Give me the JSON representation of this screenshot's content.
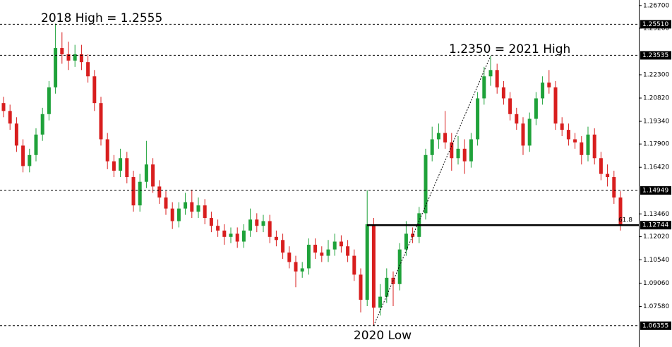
{
  "chart_data": {
    "type": "candlestick",
    "up_color": "#1fa23a",
    "down_color": "#d81e1e",
    "ylim": [
      1.0545,
      1.2705
    ],
    "yticks": [
      {
        "value": 1.267,
        "label": "1.26700"
      },
      {
        "value": 1.2526,
        "label": "1.25260"
      },
      {
        "value": 1.223,
        "label": "1.22300"
      },
      {
        "value": 1.2082,
        "label": "1.20820"
      },
      {
        "value": 1.1934,
        "label": "1.19340"
      },
      {
        "value": 1.179,
        "label": "1.17900"
      },
      {
        "value": 1.1642,
        "label": "1.16420"
      },
      {
        "value": 1.1346,
        "label": "1.13460"
      },
      {
        "value": 1.1202,
        "label": "1.12020"
      },
      {
        "value": 1.1054,
        "label": "1.10540"
      },
      {
        "value": 1.0906,
        "label": "1.09060"
      },
      {
        "value": 1.0758,
        "label": "1.07580"
      }
    ],
    "levels": [
      {
        "value": 1.2551,
        "label": "1.25510",
        "style": "dashed"
      },
      {
        "value": 1.23535,
        "label": "1.23535",
        "style": "dashed"
      },
      {
        "value": 1.14949,
        "label": "1.14949",
        "style": "dashed"
      },
      {
        "value": 1.12744,
        "label": "1.12744",
        "style": "solid",
        "ratio": 61.8
      },
      {
        "value": 1.06355,
        "label": "1.06355",
        "style": "dashed"
      }
    ],
    "annotations": [
      "2018 High = 1.2555",
      "1.2350 = 2021 High",
      "2020 Low"
    ],
    "open": [
      1.205,
      1.2,
      1.192,
      1.178,
      1.165,
      1.172,
      1.185,
      1.198,
      1.215,
      1.24,
      1.236,
      1.232,
      1.236,
      1.231,
      1.222,
      1.205,
      1.182,
      1.168,
      1.162,
      1.17,
      1.158,
      1.14,
      1.155,
      1.166,
      1.152,
      1.145,
      1.138,
      1.13,
      1.138,
      1.142,
      1.136,
      1.14,
      1.132,
      1.127,
      1.124,
      1.12,
      1.122,
      1.117,
      1.124,
      1.131,
      1.127,
      1.13,
      1.12,
      1.118,
      1.11,
      1.104,
      1.098,
      1.1,
      1.115,
      1.11,
      1.108,
      1.112,
      1.117,
      1.114,
      1.108,
      1.096,
      1.08,
      1.128,
      1.075,
      1.082,
      1.094,
      1.09,
      1.112,
      1.122,
      1.12,
      1.135,
      1.172,
      1.182,
      1.186,
      1.18,
      1.17,
      1.176,
      1.168,
      1.182,
      1.208,
      1.222,
      1.226,
      1.215,
      1.208,
      1.198,
      1.192,
      1.178,
      1.195,
      1.208,
      1.218,
      1.215,
      1.192,
      1.188,
      1.182,
      1.18,
      1.172,
      1.185,
      1.17,
      1.16,
      1.158,
      1.145
    ],
    "high": [
      1.209,
      1.204,
      1.196,
      1.182,
      1.176,
      1.189,
      1.202,
      1.219,
      1.2555,
      1.25,
      1.244,
      1.242,
      1.242,
      1.236,
      1.226,
      1.209,
      1.186,
      1.172,
      1.176,
      1.174,
      1.162,
      1.16,
      1.181,
      1.17,
      1.156,
      1.149,
      1.142,
      1.142,
      1.148,
      1.15,
      1.145,
      1.144,
      1.136,
      1.131,
      1.128,
      1.126,
      1.126,
      1.128,
      1.138,
      1.135,
      1.134,
      1.134,
      1.124,
      1.122,
      1.114,
      1.108,
      1.104,
      1.119,
      1.119,
      1.114,
      1.118,
      1.122,
      1.121,
      1.118,
      1.112,
      1.1,
      1.1495,
      1.132,
      1.09,
      1.1,
      1.098,
      1.116,
      1.13,
      1.126,
      1.139,
      1.176,
      1.19,
      1.192,
      1.2,
      1.186,
      1.184,
      1.182,
      1.186,
      1.212,
      1.228,
      1.235,
      1.23,
      1.219,
      1.212,
      1.202,
      1.196,
      1.199,
      1.212,
      1.222,
      1.226,
      1.219,
      1.196,
      1.192,
      1.186,
      1.184,
      1.19,
      1.189,
      1.174,
      1.166,
      1.162,
      1.149
    ],
    "low": [
      1.196,
      1.188,
      1.174,
      1.161,
      1.161,
      1.168,
      1.181,
      1.194,
      1.211,
      1.23,
      1.226,
      1.228,
      1.226,
      1.218,
      1.2,
      1.178,
      1.163,
      1.158,
      1.158,
      1.154,
      1.136,
      1.136,
      1.151,
      1.148,
      1.141,
      1.134,
      1.125,
      1.126,
      1.134,
      1.132,
      1.132,
      1.128,
      1.123,
      1.12,
      1.115,
      1.116,
      1.113,
      1.113,
      1.12,
      1.123,
      1.123,
      1.116,
      1.114,
      1.106,
      1.1,
      1.088,
      1.094,
      1.096,
      1.106,
      1.104,
      1.104,
      1.108,
      1.11,
      1.104,
      1.092,
      1.072,
      1.076,
      1.0636,
      1.07,
      1.078,
      1.076,
      1.086,
      1.108,
      1.116,
      1.116,
      1.131,
      1.168,
      1.176,
      1.176,
      1.162,
      1.166,
      1.16,
      1.164,
      1.178,
      1.204,
      1.216,
      1.211,
      1.204,
      1.194,
      1.188,
      1.172,
      1.174,
      1.191,
      1.204,
      1.211,
      1.188,
      1.184,
      1.178,
      1.176,
      1.166,
      1.168,
      1.166,
      1.156,
      1.152,
      1.141,
      1.124
    ],
    "close": [
      1.2,
      1.192,
      1.178,
      1.165,
      1.172,
      1.185,
      1.198,
      1.215,
      1.24,
      1.236,
      1.232,
      1.236,
      1.231,
      1.222,
      1.205,
      1.182,
      1.168,
      1.162,
      1.17,
      1.158,
      1.14,
      1.155,
      1.166,
      1.152,
      1.145,
      1.138,
      1.13,
      1.138,
      1.142,
      1.136,
      1.14,
      1.132,
      1.127,
      1.124,
      1.12,
      1.122,
      1.117,
      1.124,
      1.131,
      1.127,
      1.13,
      1.12,
      1.118,
      1.11,
      1.104,
      1.098,
      1.1,
      1.115,
      1.11,
      1.108,
      1.112,
      1.117,
      1.114,
      1.108,
      1.096,
      1.08,
      1.128,
      1.075,
      1.082,
      1.094,
      1.09,
      1.112,
      1.122,
      1.12,
      1.135,
      1.172,
      1.182,
      1.186,
      1.18,
      1.17,
      1.176,
      1.168,
      1.182,
      1.208,
      1.222,
      1.226,
      1.215,
      1.208,
      1.198,
      1.192,
      1.178,
      1.195,
      1.208,
      1.218,
      1.215,
      1.192,
      1.188,
      1.182,
      1.18,
      1.172,
      1.185,
      1.17,
      1.16,
      1.158,
      1.145,
      1.128
    ]
  }
}
